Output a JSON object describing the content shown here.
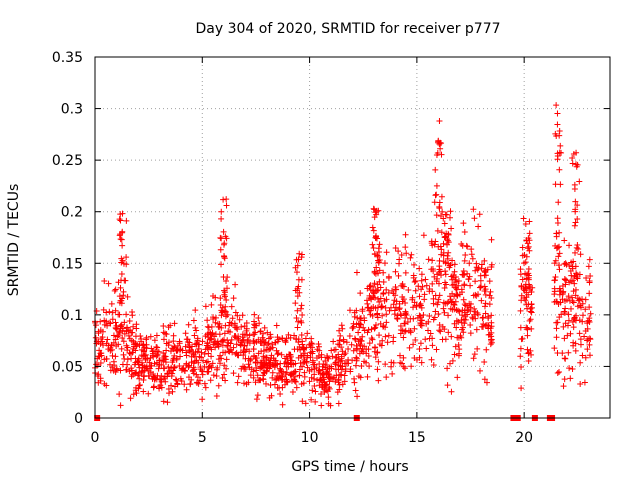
{
  "chart_data": {
    "type": "scatter",
    "title": "Day 304 of 2020, SRMTID for receiver p777",
    "xlabel": "GPS time / hours",
    "ylabel": "SRMTID / TECUs",
    "xlim": [
      0,
      24
    ],
    "ylim": [
      0,
      0.35
    ],
    "x_ticks": [
      0,
      5,
      10,
      15,
      20
    ],
    "x_tick_labels": [
      "0",
      "5",
      "10",
      "15",
      "20"
    ],
    "y_ticks": [
      0,
      0.05,
      0.1,
      0.15,
      0.2,
      0.25,
      0.3,
      0.35
    ],
    "y_tick_labels": [
      "0",
      "0.05",
      "0.1",
      "0.15",
      "0.2",
      "0.25",
      "0.3",
      "0.35"
    ],
    "grid": true,
    "marker": "+",
    "marker_color": "#ff0000",
    "series": [
      {
        "name": "SRMTID",
        "description": "Dense scatter of per-epoch SRMTID values; trend estimated from the plot",
        "trend": [
          {
            "x": 0.0,
            "y": 0.065
          },
          {
            "x": 0.5,
            "y": 0.07
          },
          {
            "x": 1.0,
            "y": 0.075
          },
          {
            "x": 1.5,
            "y": 0.08
          },
          {
            "x": 2.0,
            "y": 0.055
          },
          {
            "x": 2.5,
            "y": 0.05
          },
          {
            "x": 3.0,
            "y": 0.05
          },
          {
            "x": 3.5,
            "y": 0.055
          },
          {
            "x": 4.0,
            "y": 0.058
          },
          {
            "x": 4.5,
            "y": 0.06
          },
          {
            "x": 5.0,
            "y": 0.06
          },
          {
            "x": 5.5,
            "y": 0.07
          },
          {
            "x": 6.0,
            "y": 0.085
          },
          {
            "x": 6.5,
            "y": 0.075
          },
          {
            "x": 7.0,
            "y": 0.065
          },
          {
            "x": 7.5,
            "y": 0.06
          },
          {
            "x": 8.0,
            "y": 0.055
          },
          {
            "x": 8.5,
            "y": 0.05
          },
          {
            "x": 9.0,
            "y": 0.052
          },
          {
            "x": 9.5,
            "y": 0.058
          },
          {
            "x": 10.0,
            "y": 0.05
          },
          {
            "x": 10.5,
            "y": 0.045
          },
          {
            "x": 11.0,
            "y": 0.045
          },
          {
            "x": 11.5,
            "y": 0.055
          },
          {
            "x": 12.0,
            "y": 0.07
          },
          {
            "x": 12.5,
            "y": 0.08
          },
          {
            "x": 13.0,
            "y": 0.1
          },
          {
            "x": 13.5,
            "y": 0.11
          },
          {
            "x": 14.0,
            "y": 0.1
          },
          {
            "x": 14.5,
            "y": 0.105
          },
          {
            "x": 15.0,
            "y": 0.1
          },
          {
            "x": 15.5,
            "y": 0.1
          },
          {
            "x": 16.0,
            "y": 0.12
          },
          {
            "x": 16.5,
            "y": 0.11
          },
          {
            "x": 17.0,
            "y": 0.11
          },
          {
            "x": 17.5,
            "y": 0.115
          },
          {
            "x": 18.0,
            "y": 0.12
          },
          {
            "x": 18.4,
            "y": 0.1
          },
          {
            "x": 19.9,
            "y": 0.11
          },
          {
            "x": 20.3,
            "y": 0.1
          },
          {
            "x": 21.5,
            "y": 0.12
          },
          {
            "x": 22.0,
            "y": 0.11
          },
          {
            "x": 22.5,
            "y": 0.1
          },
          {
            "x": 23.0,
            "y": 0.1
          }
        ],
        "segments": [
          [
            0.0,
            18.5
          ],
          [
            19.8,
            20.4
          ],
          [
            21.4,
            23.1
          ]
        ],
        "peaks": [
          {
            "x": 1.3,
            "y": 0.2
          },
          {
            "x": 6.0,
            "y": 0.215
          },
          {
            "x": 9.5,
            "y": 0.16
          },
          {
            "x": 13.1,
            "y": 0.21
          },
          {
            "x": 16.0,
            "y": 0.295
          },
          {
            "x": 16.4,
            "y": 0.205
          },
          {
            "x": 20.1,
            "y": 0.195
          },
          {
            "x": 21.6,
            "y": 0.305
          },
          {
            "x": 22.4,
            "y": 0.262
          }
        ],
        "zero_points": [
          0.1,
          12.2,
          19.5,
          19.6,
          19.7,
          20.5,
          21.2,
          21.3
        ]
      }
    ]
  }
}
